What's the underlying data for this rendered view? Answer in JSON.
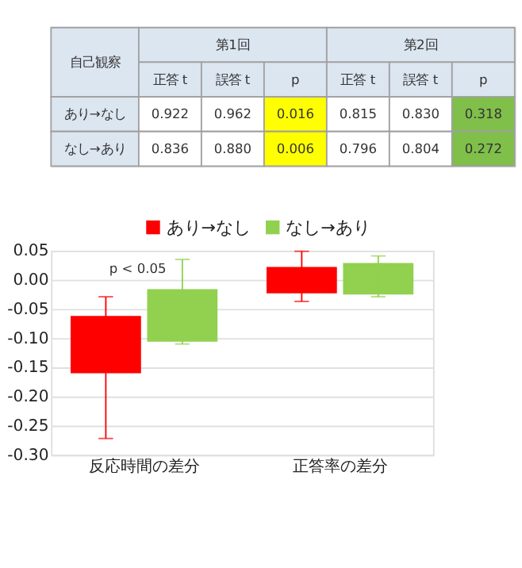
{
  "chart_data": [
    {
      "type": "other",
      "annotations": [
        "自己観察",
        "第1回",
        "第2回"
      ],
      "categories": [
        "正答 t",
        "誤答 t",
        "p",
        "正答 t",
        "誤答 t",
        "p"
      ],
      "y_categories": [
        "あり→なし",
        "なし→あり"
      ],
      "cell_labels": [
        [
          "0.922",
          "0.962",
          "0.016",
          "0.815",
          "0.830",
          "0.318"
        ],
        [
          "0.836",
          "0.880",
          "0.006",
          "0.796",
          "0.804",
          "0.272"
        ]
      ],
      "colors": [
        [
          "#ffffff",
          "#ffffff",
          "#ffff00",
          "#ffffff",
          "#ffffff",
          "#7fbf4a"
        ],
        [
          "#ffffff",
          "#ffffff",
          "#ffff00",
          "#ffffff",
          "#ffffff",
          "#7fbf4a"
        ]
      ]
    },
    {
      "type": "bar",
      "categories": [
        "反応時間の差分",
        "正答率の差分"
      ],
      "series": [
        {
          "name": "あり→なし",
          "color": "#ff0000",
          "base": [
            -0.16,
            -0.023
          ],
          "values": [
            0.098,
            0.045
          ],
          "errors": [
            [
              -0.272,
              -0.029
            ],
            [
              -0.037,
              0.049
            ]
          ]
        },
        {
          "name": "なし→あり",
          "color": "#92d050",
          "base": [
            -0.106,
            -0.025
          ],
          "values": [
            0.09,
            0.054
          ],
          "errors": [
            [
              -0.11,
              0.035
            ],
            [
              -0.029,
              0.041
            ]
          ]
        }
      ],
      "ylim": [
        -0.3,
        0.05
      ],
      "yticks": [
        {
          "value": 0.05,
          "label": "0.05"
        },
        {
          "value": 0,
          "label": "0.00"
        },
        {
          "value": -0.05,
          "label": "-0.05"
        },
        {
          "value": -0.1,
          "label": "-0.10"
        },
        {
          "value": -0.15,
          "label": "-0.15"
        },
        {
          "value": -0.2,
          "label": "-0.20"
        },
        {
          "value": -0.25,
          "label": "-0.25"
        },
        {
          "value": -0.3,
          "label": "-0.30"
        }
      ],
      "grid": "y",
      "legend": "top",
      "annotations": [
        "p < 0.05"
      ]
    }
  ]
}
